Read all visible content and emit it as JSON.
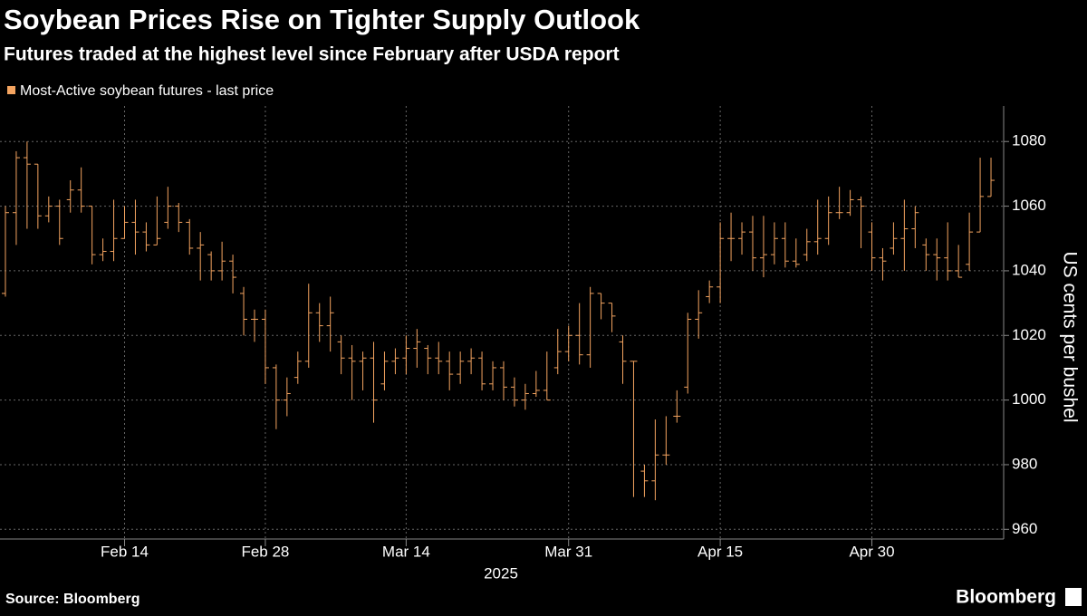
{
  "chart_data": {
    "type": "ohlc",
    "title": "Soybean Prices Rise on Tighter Supply Outlook",
    "subtitle": "Futures traded at the highest level since February after USDA report",
    "source": "Source: Bloomberg",
    "brand": "Bloomberg",
    "x_label": "2025",
    "y_label": "US cents per bushel",
    "categories": [
      null,
      null,
      null,
      null,
      null,
      null,
      null,
      null,
      null,
      null,
      null,
      "Feb 14",
      null,
      null,
      null,
      null,
      null,
      null,
      null,
      null,
      null,
      null,
      null,
      null,
      "Feb 28",
      null,
      null,
      null,
      null,
      null,
      null,
      null,
      null,
      null,
      null,
      null,
      null,
      "Mar 14",
      null,
      null,
      null,
      null,
      null,
      null,
      null,
      null,
      null,
      null,
      null,
      null,
      null,
      null,
      "Mar 31",
      null,
      null,
      null,
      null,
      null,
      null,
      null,
      null,
      null,
      null,
      null,
      null,
      null,
      "Apr 15",
      null,
      null,
      null,
      null,
      null,
      null,
      null,
      null,
      null,
      null,
      null,
      null,
      null,
      "Apr 30",
      null,
      null,
      null,
      null,
      null,
      null,
      null,
      null,
      null,
      null,
      null
    ],
    "series": [
      {
        "name": "Most-Active soybean futures - last price",
        "color": "#f4a460",
        "open": [
          1033,
          1058,
          1075,
          1073,
          1057,
          1060,
          1062,
          1065,
          1060,
          1045,
          1046,
          1050,
          1055,
          1052,
          1048,
          1055,
          1060,
          1055,
          1047,
          1045,
          1040,
          1043,
          1033,
          1025,
          1025,
          1010,
          1000,
          1007,
          1012,
          1027,
          1023,
          1018,
          1013,
          1012,
          1013,
          1005,
          1012,
          1013,
          1016,
          1016,
          1013,
          1012,
          1008,
          1012,
          1013,
          1005,
          1010,
          1004,
          1000,
          1002,
          1003,
          1010,
          1015,
          1020,
          1014,
          1033,
          1030,
          1018,
          1012,
          978,
          975,
          983,
          995,
          1004,
          1025,
          1032,
          1035,
          1050,
          1050,
          1052,
          1044,
          1045,
          1050,
          1043,
          1045,
          1049,
          1050,
          1058,
          1058,
          1062,
          1052,
          1044,
          1047,
          1050,
          1053,
          1048,
          1045,
          1044,
          1040,
          1042,
          1052,
          1063
        ],
        "high": [
          1060,
          1077,
          1080,
          1073,
          1063,
          1062,
          1068,
          1072,
          1060,
          1050,
          1062,
          1060,
          1062,
          1055,
          1063,
          1066,
          1061,
          1056,
          1052,
          1046,
          1049,
          1045,
          1035,
          1028,
          1028,
          1011,
          1007,
          1015,
          1036,
          1030,
          1032,
          1020,
          1017,
          1015,
          1018,
          1015,
          1016,
          1020,
          1022,
          1017,
          1018,
          1015,
          1015,
          1016,
          1015,
          1012,
          1012,
          1007,
          1005,
          1009,
          1015,
          1022,
          1023,
          1030,
          1035,
          1033,
          1030,
          1020,
          1012,
          980,
          994,
          995,
          1003,
          1027,
          1034,
          1037,
          1055,
          1058,
          1055,
          1057,
          1057,
          1055,
          1055,
          1050,
          1053,
          1062,
          1063,
          1066,
          1065,
          1063,
          1055,
          1047,
          1055,
          1062,
          1060,
          1050,
          1050,
          1055,
          1048,
          1058,
          1075,
          1075
        ],
        "low": [
          1032,
          1048,
          1053,
          1053,
          1055,
          1048,
          1058,
          1058,
          1042,
          1043,
          1043,
          1050,
          1045,
          1046,
          1048,
          1053,
          1052,
          1045,
          1037,
          1037,
          1037,
          1033,
          1020,
          1018,
          1005,
          991,
          995,
          1005,
          1010,
          1018,
          1015,
          1008,
          1000,
          1003,
          993,
          1003,
          1008,
          1008,
          1010,
          1008,
          1008,
          1003,
          1005,
          1008,
          1003,
          1003,
          1000,
          998,
          997,
          1001,
          1000,
          1008,
          1012,
          1011,
          1010,
          1025,
          1021,
          1005,
          970,
          970,
          969,
          980,
          993,
          1002,
          1019,
          1030,
          1030,
          1043,
          1045,
          1040,
          1038,
          1042,
          1041,
          1041,
          1043,
          1045,
          1048,
          1056,
          1057,
          1047,
          1040,
          1037,
          1045,
          1040,
          1047,
          1040,
          1037,
          1037,
          1038,
          1040,
          1052,
          1063
        ],
        "close": [
          1058,
          1075,
          1073,
          1057,
          1060,
          1050,
          1065,
          1060,
          1045,
          1046,
          1050,
          1055,
          1052,
          1048,
          1050,
          1060,
          1055,
          1047,
          1048,
          1040,
          1043,
          1038,
          1025,
          1025,
          1010,
          1000,
          1002,
          1012,
          1027,
          1023,
          1027,
          1013,
          1012,
          1013,
          1000,
          1012,
          1013,
          1016,
          1018,
          1013,
          1012,
          1008,
          1012,
          1013,
          1005,
          1010,
          1004,
          1000,
          1002,
          1003,
          1000,
          1015,
          1020,
          1014,
          1033,
          1030,
          1026,
          1012,
          1012,
          975,
          983,
          983,
          995,
          1025,
          1027,
          1035,
          1050,
          1050,
          1052,
          1044,
          1045,
          1050,
          1043,
          1042,
          1049,
          1050,
          1058,
          1058,
          1062,
          1060,
          1044,
          1043,
          1050,
          1053,
          1058,
          1045,
          1044,
          1040,
          1038,
          1052,
          1063,
          1068
        ]
      }
    ],
    "ylim": [
      957,
      1091
    ],
    "yticks": [
      960,
      980,
      1000,
      1020,
      1040,
      1060,
      1080
    ],
    "grid": true,
    "legend": "top-left"
  }
}
